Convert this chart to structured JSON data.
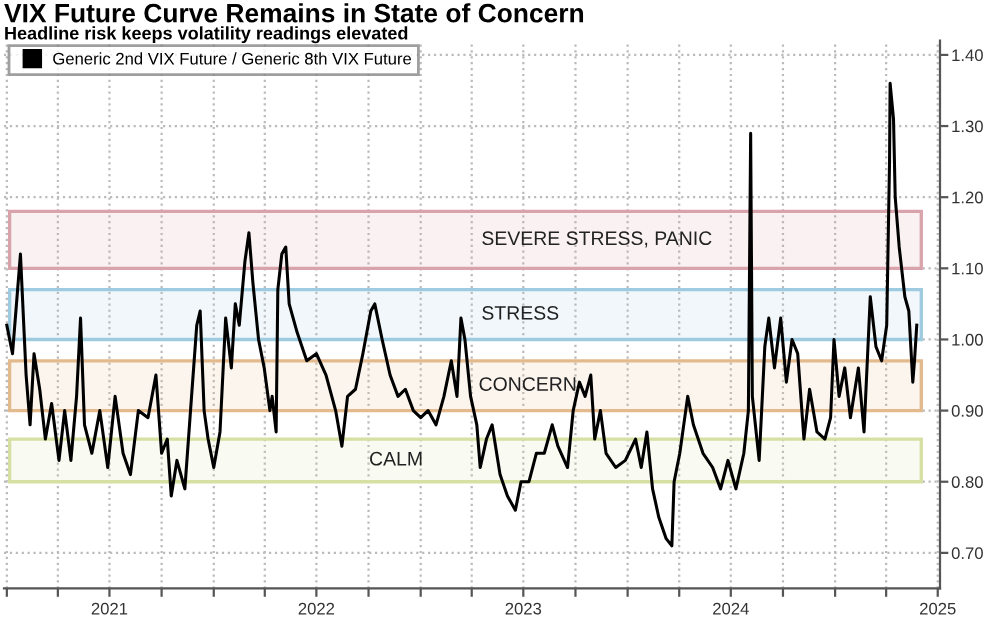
{
  "chart_data": {
    "type": "line",
    "title": "VIX Future Curve Remains in State of Concern",
    "subtitle": "Headline risk keeps volatility readings elevated",
    "x": [
      "2021-01-01",
      "2021-01-11",
      "2021-01-25",
      "2021-02-04",
      "2021-02-11",
      "2021-02-18",
      "2021-02-28",
      "2021-03-10",
      "2021-03-21",
      "2021-04-03",
      "2021-04-13",
      "2021-04-24",
      "2021-05-04",
      "2021-05-11",
      "2021-05-18",
      "2021-05-31",
      "2021-06-14",
      "2021-06-28",
      "2021-07-11",
      "2021-07-25",
      "2021-08-07",
      "2021-08-21",
      "2021-09-07",
      "2021-09-21",
      "2021-10-01",
      "2021-10-11",
      "2021-10-18",
      "2021-10-28",
      "2021-11-11",
      "2021-11-21",
      "2021-12-02",
      "2021-12-08",
      "2021-12-15",
      "2021-12-22",
      "2022-01-01",
      "2022-01-12",
      "2022-01-22",
      "2022-02-01",
      "2022-02-08",
      "2022-02-15",
      "2022-02-25",
      "2022-03-04",
      "2022-03-11",
      "2022-03-21",
      "2022-03-31",
      "2022-04-10",
      "2022-04-14",
      "2022-04-21",
      "2022-04-24",
      "2022-05-01",
      "2022-05-08",
      "2022-05-14",
      "2022-05-28",
      "2022-06-14",
      "2022-07-01",
      "2022-07-18",
      "2022-08-04",
      "2022-08-15",
      "2022-08-25",
      "2022-09-08",
      "2022-09-21",
      "2022-10-05",
      "2022-10-12",
      "2022-10-25",
      "2022-11-08",
      "2022-11-22",
      "2022-12-05",
      "2022-12-19",
      "2023-01-01",
      "2023-01-14",
      "2023-01-28",
      "2023-02-11",
      "2023-02-24",
      "2023-03-06",
      "2023-03-13",
      "2023-03-20",
      "2023-03-30",
      "2023-04-10",
      "2023-04-16",
      "2023-04-27",
      "2023-05-07",
      "2023-05-21",
      "2023-06-03",
      "2023-06-17",
      "2023-06-27",
      "2023-07-11",
      "2023-07-24",
      "2023-08-07",
      "2023-08-21",
      "2023-08-31",
      "2023-09-17",
      "2023-09-27",
      "2023-10-08",
      "2023-10-18",
      "2023-10-28",
      "2023-11-04",
      "2023-11-14",
      "2023-11-24",
      "2023-12-11",
      "2023-12-28",
      "2024-01-15",
      "2024-01-25",
      "2024-02-04",
      "2024-02-14",
      "2024-02-25",
      "2024-03-09",
      "2024-03-19",
      "2024-03-23",
      "2024-04-02",
      "2024-04-16",
      "2024-04-26",
      "2024-05-13",
      "2024-05-30",
      "2024-06-13",
      "2024-06-26",
      "2024-07-10",
      "2024-07-24",
      "2024-08-01",
      "2024-08-05",
      "2024-08-08",
      "2024-08-20",
      "2024-08-30",
      "2024-09-06",
      "2024-09-16",
      "2024-09-27",
      "2024-10-07",
      "2024-10-17",
      "2024-10-27",
      "2024-11-07",
      "2024-11-17",
      "2024-11-30",
      "2024-12-14",
      "2024-12-24",
      "2024-12-30",
      "2025-01-08",
      "2025-01-18",
      "2025-01-28",
      "2025-02-11",
      "2025-02-21",
      "2025-03-04",
      "2025-03-14",
      "2025-03-24",
      "2025-04-02",
      "2025-04-07",
      "2025-04-08",
      "2025-04-14",
      "2025-04-17",
      "2025-04-24",
      "2025-05-04",
      "2025-05-11",
      "2025-05-18",
      "2025-05-21",
      "2025-05-25"
    ],
    "series": [
      {
        "name": "Generic 2nd VIX Future / Generic 8th VIX Future",
        "color": "#000000",
        "values": [
          1.02,
          0.98,
          1.12,
          0.95,
          0.88,
          0.98,
          0.93,
          0.86,
          0.91,
          0.83,
          0.9,
          0.83,
          0.92,
          1.03,
          0.88,
          0.84,
          0.9,
          0.82,
          0.92,
          0.84,
          0.81,
          0.9,
          0.89,
          0.95,
          0.84,
          0.86,
          0.78,
          0.83,
          0.79,
          0.9,
          1.02,
          1.04,
          0.9,
          0.86,
          0.82,
          0.87,
          1.03,
          0.96,
          1.05,
          1.02,
          1.11,
          1.15,
          1.08,
          1.0,
          0.96,
          0.9,
          0.92,
          0.87,
          1.07,
          1.12,
          1.13,
          1.05,
          1.01,
          0.97,
          0.98,
          0.95,
          0.9,
          0.85,
          0.92,
          0.93,
          0.98,
          1.04,
          1.05,
          1.0,
          0.95,
          0.92,
          0.93,
          0.9,
          0.89,
          0.9,
          0.88,
          0.92,
          0.97,
          0.92,
          1.03,
          1.0,
          0.92,
          0.88,
          0.82,
          0.86,
          0.88,
          0.81,
          0.78,
          0.76,
          0.8,
          0.8,
          0.84,
          0.84,
          0.88,
          0.85,
          0.82,
          0.9,
          0.94,
          0.92,
          0.95,
          0.86,
          0.9,
          0.84,
          0.82,
          0.83,
          0.86,
          0.82,
          0.87,
          0.79,
          0.75,
          0.72,
          0.71,
          0.8,
          0.84,
          0.92,
          0.88,
          0.84,
          0.82,
          0.79,
          0.83,
          0.79,
          0.84,
          0.9,
          1.29,
          0.92,
          0.83,
          0.99,
          1.03,
          0.96,
          1.03,
          0.94,
          1.0,
          0.98,
          0.86,
          0.93,
          0.87,
          0.86,
          0.89,
          1.0,
          0.92,
          0.96,
          0.89,
          0.96,
          0.87,
          1.06,
          0.99,
          0.97,
          1.02,
          1.25,
          1.36,
          1.31,
          1.2,
          1.13,
          1.06,
          1.04,
          0.94,
          0.97,
          1.02
        ]
      }
    ],
    "bands": [
      {
        "axis": "y",
        "from": 1.1,
        "to": 1.18,
        "label": "SEVERE STRESS, PANIC",
        "color": "#d9a3ab"
      },
      {
        "axis": "y",
        "from": 1.0,
        "to": 1.07,
        "label": "STRESS",
        "color": "#9fcbe0"
      },
      {
        "axis": "y",
        "from": 0.9,
        "to": 0.97,
        "label": "CONCERN",
        "color": "#e3b98e"
      },
      {
        "axis": "y",
        "from": 0.8,
        "to": 0.86,
        "label": "CALM",
        "color": "#d6e0a3"
      }
    ],
    "xlim": [
      "2020-12-27",
      "2025-07-05"
    ],
    "xticks": [
      {
        "value": "2021-01-01",
        "label": null
      },
      {
        "value": "2021-04-01",
        "label": null
      },
      {
        "value": "2021-07-01",
        "label": "2021"
      },
      {
        "value": "2021-10-01",
        "label": null
      },
      {
        "value": "2022-01-01",
        "label": null
      },
      {
        "value": "2022-04-01",
        "label": null
      },
      {
        "value": "2022-07-01",
        "label": "2022"
      },
      {
        "value": "2022-10-01",
        "label": null
      },
      {
        "value": "2023-01-01",
        "label": null
      },
      {
        "value": "2023-04-01",
        "label": null
      },
      {
        "value": "2023-07-01",
        "label": "2023"
      },
      {
        "value": "2023-10-01",
        "label": null
      },
      {
        "value": "2024-01-01",
        "label": null
      },
      {
        "value": "2024-04-01",
        "label": null
      },
      {
        "value": "2024-07-01",
        "label": "2024"
      },
      {
        "value": "2024-10-01",
        "label": null
      },
      {
        "value": "2025-01-01",
        "label": null
      },
      {
        "value": "2025-04-01",
        "label": null
      },
      {
        "value": "2025-07-01",
        "label": "2025"
      }
    ],
    "ylim": [
      0.65,
      1.42
    ],
    "yticks": [
      {
        "value": 0.7,
        "label": "0.70"
      },
      {
        "value": 0.8,
        "label": "0.80"
      },
      {
        "value": 0.9,
        "label": "0.90"
      },
      {
        "value": 1.0,
        "label": "1.00"
      },
      {
        "value": 1.1,
        "label": "1.10"
      },
      {
        "value": 1.2,
        "label": "1.20"
      },
      {
        "value": 1.3,
        "label": "1.30"
      },
      {
        "value": 1.4,
        "label": "1.40"
      }
    ],
    "grid": true,
    "legend": "top left",
    "line_style": "solid",
    "marker": "none"
  }
}
